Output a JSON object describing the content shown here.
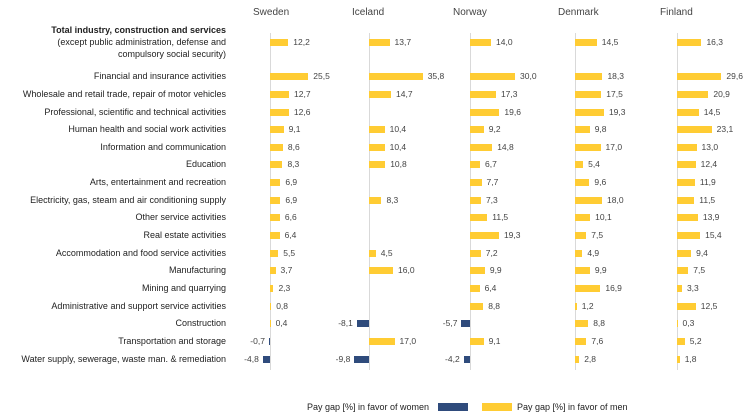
{
  "chart_data": {
    "type": "bar",
    "orientation": "horizontal",
    "countries": [
      "Sweden",
      "Iceland",
      "Norway",
      "Denmark",
      "Finland"
    ],
    "categories": [
      {
        "title": "Total industry, construction and services",
        "subtitle": [
          "(except public administration, defense and",
          "compulsory social security)"
        ]
      },
      "Financial and insurance activities",
      "Wholesale and retail trade, repair of motor vehicles",
      "Professional, scientific and technical activities",
      "Human health and social work activities",
      "Information and communication",
      "Education",
      "Arts, entertainment and recreation",
      "Electricity, gas, steam and air conditioning supply",
      "Other service activities",
      "Real estate activities",
      "Accommodation and food service activities",
      "Manufacturing",
      "Mining and quarrying",
      "Administrative and support service activities",
      "Construction",
      "Transportation and storage",
      "Water supply, sewerage, waste man. & remediation"
    ],
    "series": [
      {
        "name": "Sweden",
        "values": [
          12.2,
          25.5,
          12.7,
          12.6,
          9.1,
          8.6,
          8.3,
          6.9,
          6.9,
          6.6,
          6.4,
          5.5,
          3.7,
          2.3,
          0.8,
          0.4,
          -0.7,
          -4.8
        ]
      },
      {
        "name": "Iceland",
        "values": [
          13.7,
          35.8,
          14.7,
          null,
          10.4,
          10.4,
          10.8,
          null,
          8.3,
          null,
          null,
          4.5,
          16.0,
          null,
          null,
          -8.1,
          17.0,
          -9.8
        ]
      },
      {
        "name": "Norway",
        "values": [
          14.0,
          30.0,
          17.3,
          19.6,
          9.2,
          14.8,
          6.7,
          7.7,
          7.3,
          11.5,
          19.3,
          7.2,
          9.9,
          6.4,
          8.8,
          -5.7,
          9.1,
          -4.2
        ]
      },
      {
        "name": "Denmark",
        "values": [
          14.5,
          18.3,
          17.5,
          19.3,
          9.8,
          17.0,
          5.4,
          9.6,
          18.0,
          10.1,
          7.5,
          4.9,
          9.9,
          16.9,
          1.2,
          8.8,
          7.6,
          2.8
        ]
      },
      {
        "name": "Finland",
        "values": [
          16.3,
          29.6,
          20.9,
          14.5,
          23.1,
          13.0,
          12.4,
          11.9,
          11.5,
          13.9,
          15.4,
          9.4,
          7.5,
          3.3,
          12.5,
          0.3,
          5.2,
          1.8
        ]
      }
    ],
    "legend": {
      "women": "Pay gap [%] in favor of women",
      "men": "Pay gap [%] in favor of men",
      "placement": "bottom"
    },
    "colors": {
      "women": "#2f4b7c",
      "men": "#ffcc33"
    },
    "decimal_separator": ","
  }
}
